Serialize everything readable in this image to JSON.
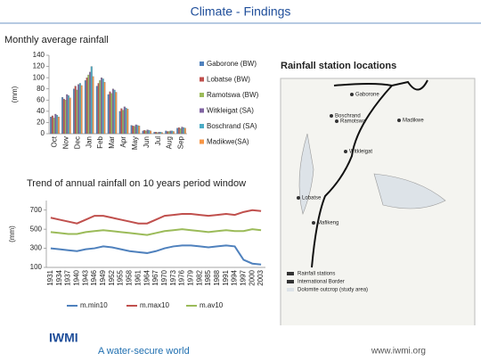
{
  "title": "Climate - Findings",
  "chart_data": [
    {
      "type": "bar",
      "title": "Monthly average rainfall",
      "y_label": "(mm)",
      "categories": [
        "Oct",
        "Nov",
        "Dec",
        "Jan",
        "Feb",
        "Mar",
        "Apr",
        "May",
        "Jun",
        "Jul",
        "Aug",
        "Sep"
      ],
      "series": [
        {
          "name": "Gaborone (BW)",
          "color": "#4f81bd",
          "values": [
            30,
            65,
            80,
            95,
            85,
            70,
            40,
            15,
            5,
            3,
            5,
            10
          ]
        },
        {
          "name": "Lobatse (BW)",
          "color": "#c0504d",
          "values": [
            32,
            62,
            85,
            100,
            90,
            75,
            45,
            14,
            6,
            3,
            4,
            11
          ]
        },
        {
          "name": "Ramotswa (BW)",
          "color": "#9bbb59",
          "values": [
            28,
            60,
            78,
            105,
            95,
            72,
            42,
            13,
            5,
            2,
            4,
            9
          ]
        },
        {
          "name": "Witkleigat (SA)",
          "color": "#8064a2",
          "values": [
            35,
            70,
            88,
            110,
            100,
            80,
            48,
            16,
            7,
            3,
            5,
            12
          ]
        },
        {
          "name": "Boschrand (SA)",
          "color": "#4bacc6",
          "values": [
            33,
            68,
            90,
            120,
            98,
            78,
            46,
            15,
            6,
            3,
            5,
            11
          ]
        },
        {
          "name": "Madikwe(SA)",
          "color": "#f79646",
          "values": [
            30,
            64,
            86,
            102,
            92,
            74,
            44,
            14,
            5,
            2,
            4,
            10
          ]
        }
      ],
      "ylim": [
        0,
        140
      ],
      "yticks": [
        0,
        20,
        40,
        60,
        80,
        100,
        120,
        140
      ]
    },
    {
      "type": "line",
      "title": "Trend of annual rainfall on 10 years period window",
      "y_label": "(mm)",
      "categories": [
        "1931",
        "1934",
        "1937",
        "1940",
        "1943",
        "1946",
        "1949",
        "1952",
        "1955",
        "1958",
        "1961",
        "1964",
        "1967",
        "1970",
        "1973",
        "1976",
        "1979",
        "1982",
        "1985",
        "1988",
        "1991",
        "1994",
        "1997",
        "2000",
        "2003"
      ],
      "series": [
        {
          "name": "m.min10",
          "color": "#4f81bd",
          "values": [
            300,
            290,
            280,
            270,
            290,
            300,
            320,
            310,
            290,
            270,
            260,
            250,
            270,
            300,
            320,
            330,
            330,
            320,
            310,
            320,
            330,
            320,
            180,
            140,
            130
          ]
        },
        {
          "name": "m.max10",
          "color": "#c0504d",
          "values": [
            620,
            600,
            580,
            560,
            600,
            640,
            640,
            620,
            600,
            580,
            560,
            560,
            600,
            640,
            650,
            660,
            660,
            650,
            640,
            650,
            660,
            650,
            680,
            700,
            690
          ]
        },
        {
          "name": "m.av10",
          "color": "#9bbb59",
          "values": [
            470,
            460,
            450,
            450,
            470,
            480,
            490,
            480,
            470,
            460,
            450,
            440,
            460,
            480,
            490,
            500,
            490,
            480,
            470,
            480,
            490,
            480,
            480,
            500,
            490
          ]
        }
      ],
      "ylim": [
        100,
        800
      ],
      "yticks": [
        100,
        300,
        500,
        700
      ]
    }
  ],
  "map": {
    "title": "Rainfall station locations",
    "labels": [
      "Gaborone",
      "Ramotswa",
      "Lobatse",
      "Boschrand",
      "Madikwe",
      "Witkleigat",
      "Mafikeng"
    ],
    "legend": [
      "Rainfall stations",
      "International Border",
      "Dolomite outcrop (study area)"
    ]
  },
  "footer": {
    "logo": "IWMI",
    "tagline": "A water-secure world",
    "url": "www.iwmi.org"
  }
}
